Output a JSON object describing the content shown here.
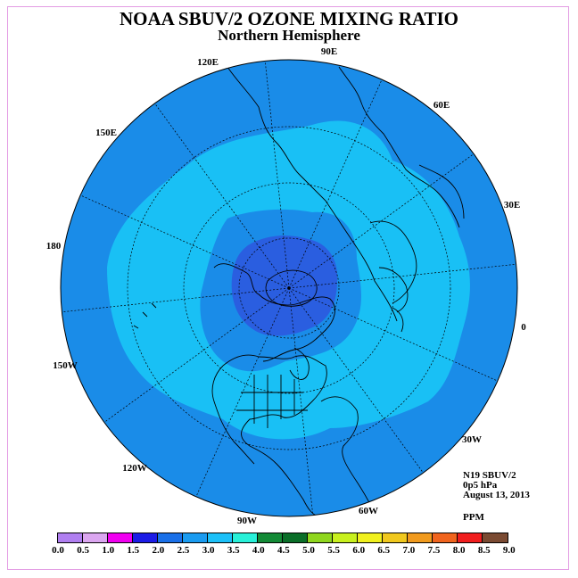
{
  "title": "NOAA SBUV/2 OZONE MIXING RATIO",
  "subtitle": "Northern Hemisphere",
  "info": {
    "satellite": "N19 SBUV/2",
    "level": "0p5 hPa",
    "date": "August 13, 2013",
    "units": "PPM"
  },
  "longitude_labels": [
    "90E",
    "60E",
    "30E",
    "0",
    "30W",
    "60W",
    "90W",
    "120W",
    "150W",
    "180",
    "150E",
    "120E"
  ],
  "colorbar": {
    "ticks": [
      "0.0",
      "0.5",
      "1.0",
      "1.5",
      "2.0",
      "2.5",
      "3.0",
      "3.5",
      "4.0",
      "4.5",
      "5.0",
      "5.5",
      "6.0",
      "6.5",
      "7.0",
      "7.5",
      "8.0",
      "8.5",
      "9.0"
    ],
    "colors": [
      "#b07ff0",
      "#dba6f0",
      "#f000f0",
      "#1c1ce6",
      "#1a70e8",
      "#1a9bf0",
      "#1cc0f8",
      "#28f0d8",
      "#138a36",
      "#0a6e28",
      "#8fd61e",
      "#c8f01e",
      "#f0f01e",
      "#f0c81e",
      "#f09a1e",
      "#f0641e",
      "#f01e1e",
      "#7a4a32"
    ]
  },
  "map": {
    "projection": "north polar stereographic",
    "outer_color": "#1a8ce8",
    "zones": [
      {
        "range": "2.5-3.0",
        "color": "#1a8ce8"
      },
      {
        "range": "3.0-3.5",
        "color": "#19c0f5"
      },
      {
        "range": "2.5-3.0",
        "color": "#1a8ce8"
      },
      {
        "range": "2.0-2.5",
        "color": "#2a5ee0"
      }
    ]
  }
}
